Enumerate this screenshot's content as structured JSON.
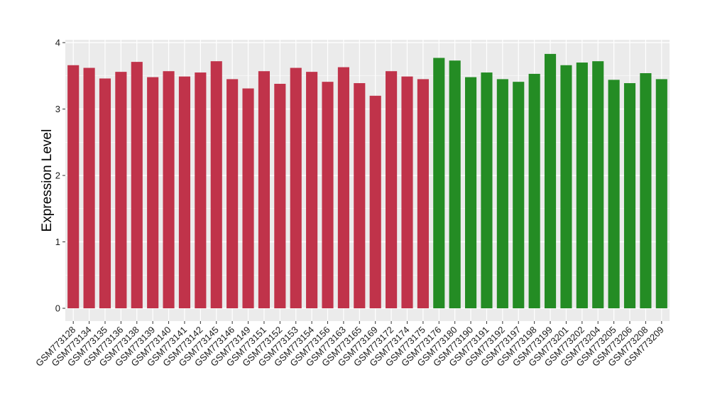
{
  "chart_data": {
    "type": "bar",
    "xlabel": "",
    "ylabel": "Expression Level",
    "ylim": [
      -0.18,
      4.03
    ],
    "yticks": [
      0,
      1,
      2,
      3,
      4
    ],
    "grid": true,
    "legend": "none",
    "colors": {
      "panel": "#ebebeb",
      "grid": "#ffffff",
      "group1": "#c0334a",
      "group2": "#248c24"
    },
    "categories": [
      "GSM773128",
      "GSM773134",
      "GSM773135",
      "GSM773136",
      "GSM773138",
      "GSM773139",
      "GSM773140",
      "GSM773141",
      "GSM773142",
      "GSM773145",
      "GSM773146",
      "GSM773149",
      "GSM773151",
      "GSM773152",
      "GSM773153",
      "GSM773154",
      "GSM773156",
      "GSM773163",
      "GSM773165",
      "GSM773169",
      "GSM773172",
      "GSM773174",
      "GSM773175",
      "GSM773176",
      "GSM773180",
      "GSM773190",
      "GSM773191",
      "GSM773192",
      "GSM773197",
      "GSM773198",
      "GSM773199",
      "GSM773201",
      "GSM773202",
      "GSM773204",
      "GSM773205",
      "GSM773206",
      "GSM773208",
      "GSM773209"
    ],
    "values": [
      3.66,
      3.62,
      3.46,
      3.56,
      3.71,
      3.48,
      3.57,
      3.49,
      3.55,
      3.72,
      3.45,
      3.31,
      3.57,
      3.38,
      3.62,
      3.56,
      3.41,
      3.63,
      3.39,
      3.2,
      3.57,
      3.49,
      3.45,
      3.77,
      3.73,
      3.48,
      3.55,
      3.45,
      3.41,
      3.53,
      3.83,
      3.66,
      3.7,
      3.72,
      3.44,
      3.39,
      3.54,
      3.45
    ],
    "groups": [
      1,
      1,
      1,
      1,
      1,
      1,
      1,
      1,
      1,
      1,
      1,
      1,
      1,
      1,
      1,
      1,
      1,
      1,
      1,
      1,
      1,
      1,
      1,
      2,
      2,
      2,
      2,
      2,
      2,
      2,
      2,
      2,
      2,
      2,
      2,
      2,
      2,
      2
    ]
  }
}
